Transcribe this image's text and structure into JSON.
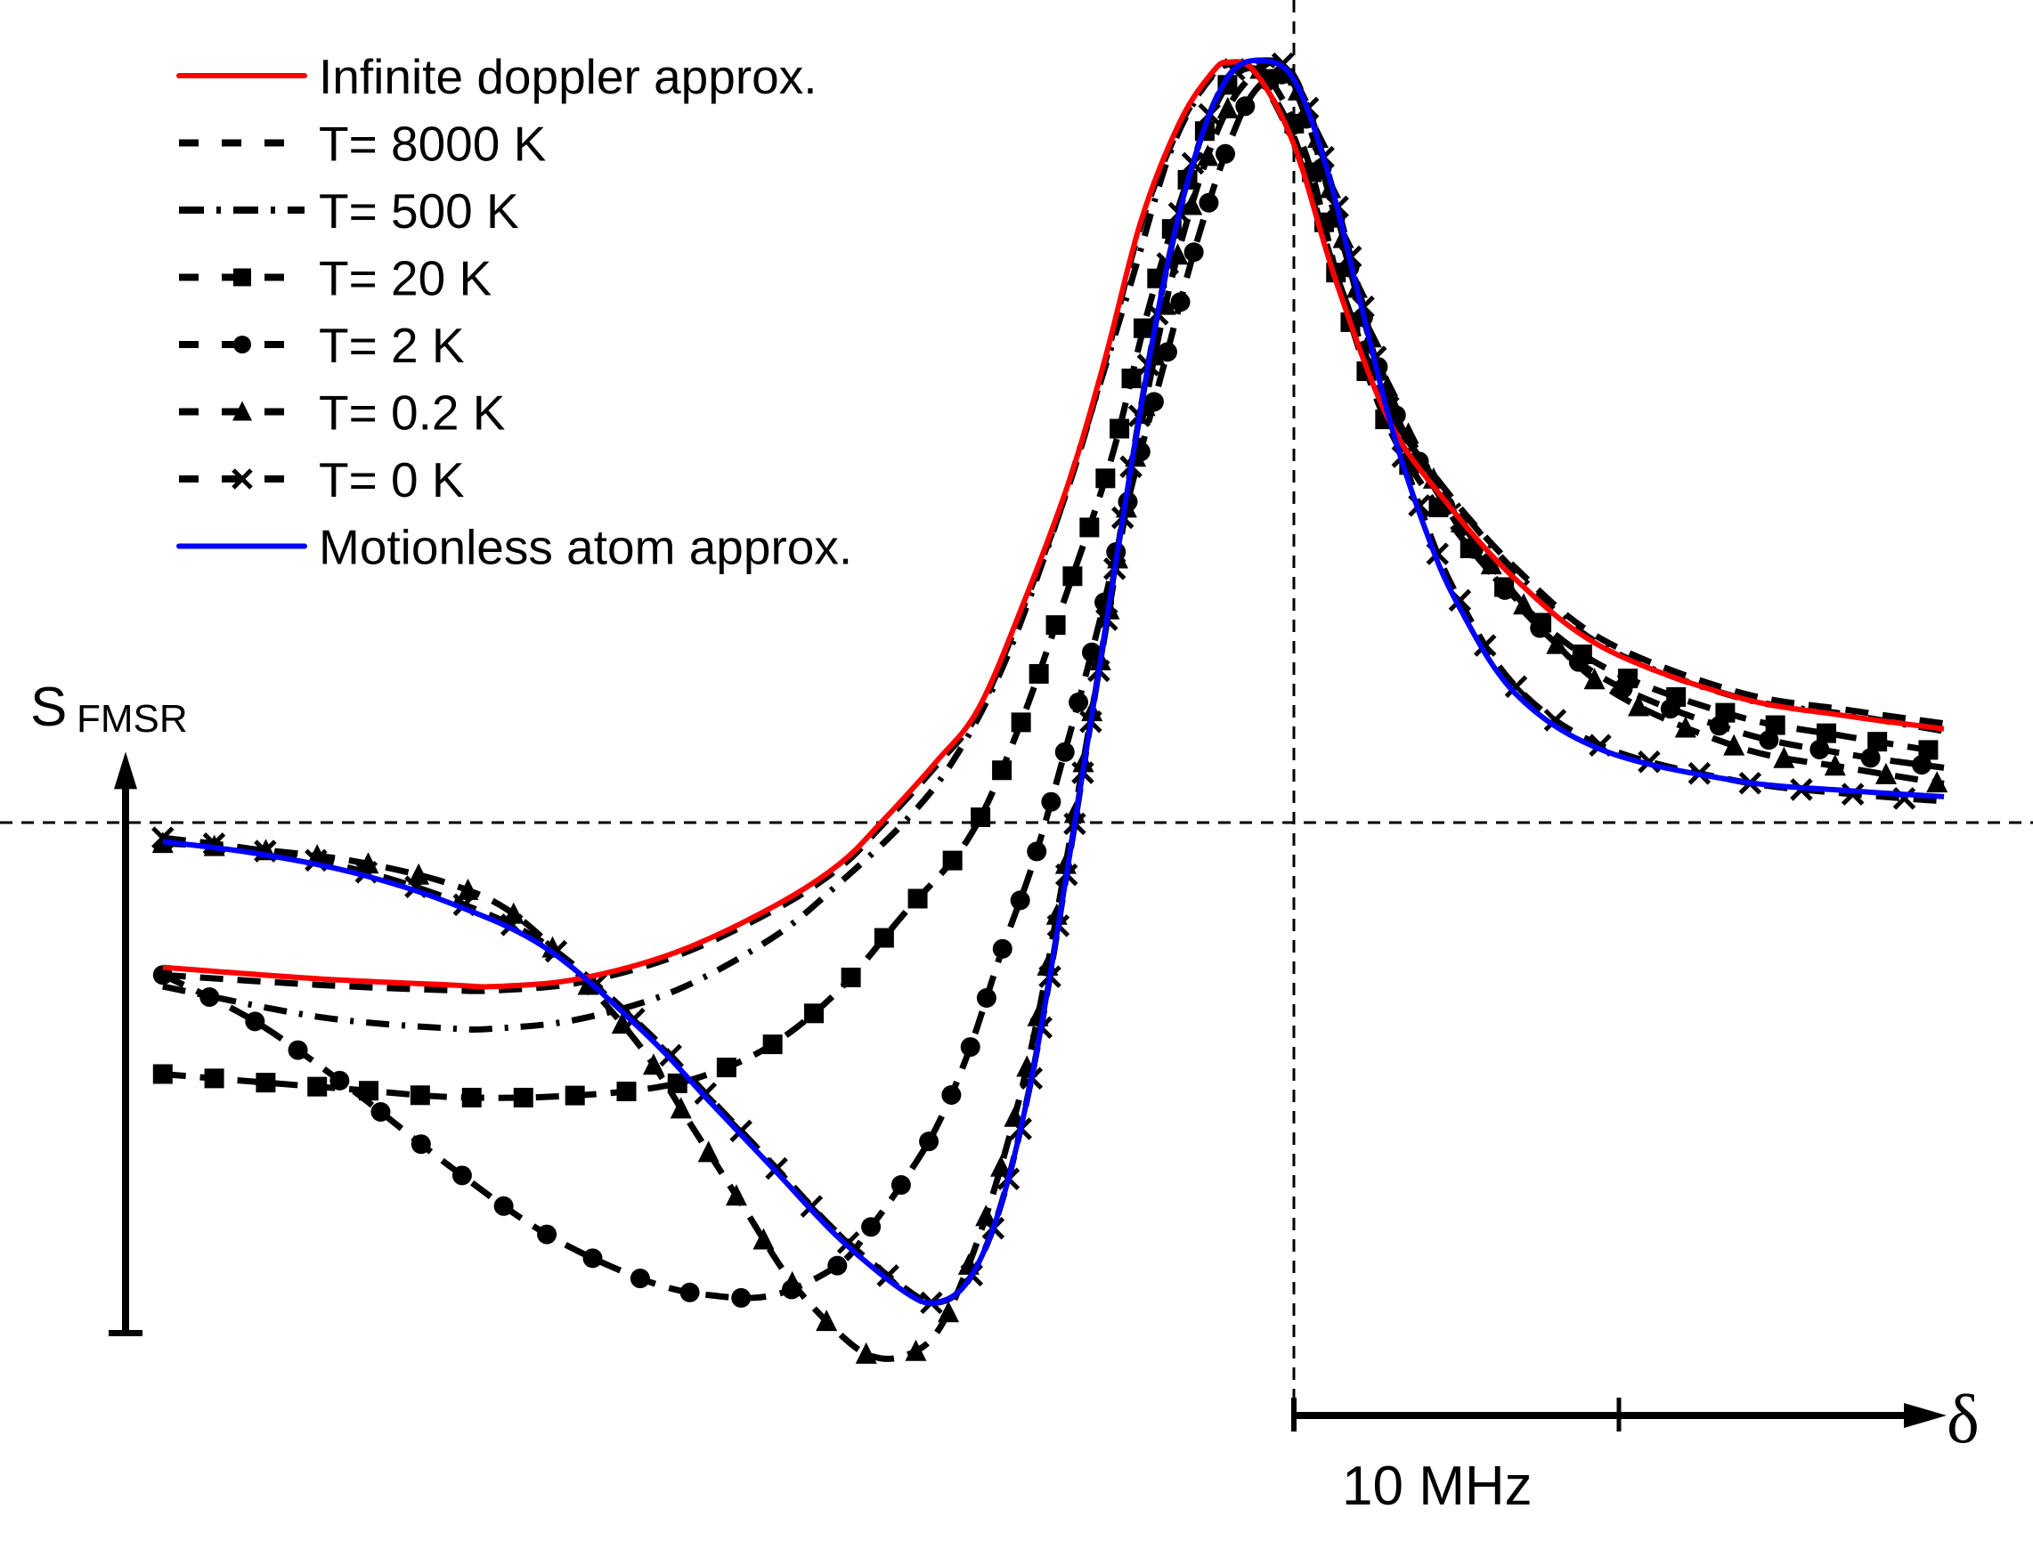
{
  "chart_data": {
    "type": "line",
    "title": "",
    "ylabel": "S",
    "ylabel_subscript": "FMSR",
    "xlabel": "δ",
    "x_unit": "MHz",
    "x_scale_bar_label": "10 MHz",
    "x_scale_bar_value": 10,
    "xlim": [
      -34.8,
      20
    ],
    "ylim": [
      -0.68,
      1.05
    ],
    "y_axis_arrow_range": [
      -0.67,
      0.093
    ],
    "x_axis_arrow_range": [
      0,
      20
    ],
    "reference_lines": {
      "horizontal_y": 0,
      "vertical_x": 0
    },
    "grid": false,
    "legend_position": "top-left",
    "series": [
      {
        "name": "Infinite doppler approx.",
        "color": "#ff0000",
        "style": "solid",
        "marker": "none",
        "x": [
          -34.8,
          -30,
          -26,
          -24.5,
          -22,
          -19,
          -16,
          -14,
          -12.7,
          -11,
          -9.7,
          -8.3,
          -6.9,
          -5.8,
          -4.7,
          -3.5,
          -2.5,
          -2,
          -1.2,
          0,
          1.3,
          2.9,
          4.6,
          6.8,
          9.5,
          13.6,
          17,
          20
        ],
        "y": [
          -0.19,
          -0.205,
          -0.213,
          -0.215,
          -0.205,
          -0.17,
          -0.11,
          -0.055,
          0,
          0.08,
          0.15,
          0.29,
          0.45,
          0.61,
          0.79,
          0.92,
          0.985,
          0.998,
          0.985,
          0.89,
          0.71,
          0.53,
          0.425,
          0.32,
          0.23,
          0.165,
          0.14,
          0.123
        ]
      },
      {
        "name": "T= 8000 K",
        "color": "#000000",
        "style": "dashed",
        "marker": "none",
        "x": [
          -34.8,
          -30,
          -26,
          -24.5,
          -22,
          -19,
          -16,
          -14,
          -12.7,
          -11,
          -9.7,
          -8.3,
          -6.9,
          -5.8,
          -4.7,
          -3.5,
          -2.5,
          -2,
          -1.2,
          0,
          1.3,
          2.9,
          4.6,
          6.8,
          9.5,
          13.6,
          17,
          20
        ],
        "y": [
          -0.2,
          -0.213,
          -0.22,
          -0.22,
          -0.21,
          -0.175,
          -0.115,
          -0.06,
          -0.005,
          0.075,
          0.145,
          0.285,
          0.445,
          0.605,
          0.785,
          0.915,
          0.98,
          0.995,
          0.985,
          0.9,
          0.72,
          0.545,
          0.44,
          0.335,
          0.24,
          0.172,
          0.148,
          0.13
        ]
      },
      {
        "name": "T= 500 K",
        "color": "#000000",
        "style": "dash-dot",
        "marker": "none",
        "x": [
          -34.8,
          -30,
          -26,
          -24.5,
          -22,
          -19,
          -16,
          -14,
          -12,
          -10.5,
          -9,
          -7.5,
          -6.3,
          -5,
          -3.8,
          -2.7,
          -2,
          -1.2,
          0,
          1.3,
          2.9,
          4.6,
          6.8,
          9.5,
          13.6,
          17,
          20
        ],
        "y": [
          -0.215,
          -0.255,
          -0.27,
          -0.27,
          -0.258,
          -0.22,
          -0.15,
          -0.08,
          0.0,
          0.08,
          0.2,
          0.37,
          0.53,
          0.71,
          0.88,
          0.97,
          0.995,
          0.985,
          0.89,
          0.72,
          0.545,
          0.44,
          0.33,
          0.232,
          0.165,
          0.142,
          0.12
        ]
      },
      {
        "name": "T= 20 K",
        "color": "#000000",
        "style": "dashed",
        "marker": "square",
        "x": [
          -34.8,
          -32,
          -29,
          -26,
          -23,
          -20,
          -18,
          -16,
          -14,
          -12,
          -10,
          -8.5,
          -7,
          -5.6,
          -4.5,
          -3.3,
          -2.3,
          -1.4,
          -0.5,
          0.5,
          1.5,
          2.9,
          4.6,
          6.8,
          9.5,
          13.6,
          17,
          20
        ],
        "y": [
          -0.33,
          -0.34,
          -0.35,
          -0.36,
          -0.36,
          -0.35,
          -0.33,
          -0.29,
          -0.22,
          -0.12,
          -0.02,
          0.12,
          0.3,
          0.48,
          0.67,
          0.84,
          0.95,
          0.99,
          0.96,
          0.86,
          0.69,
          0.52,
          0.405,
          0.295,
          0.205,
          0.14,
          0.113,
          0.092
        ]
      },
      {
        "name": "T= 2 K",
        "color": "#000000",
        "style": "dashed",
        "marker": "circle",
        "x": [
          -34.8,
          -32,
          -29,
          -26,
          -23,
          -20,
          -18,
          -16,
          -14,
          -13,
          -12,
          -11,
          -10,
          -9,
          -8,
          -7,
          -6,
          -5,
          -4,
          -3,
          -2,
          -1.2,
          -0.3,
          0.5,
          1.5,
          2.9,
          4.6,
          6.8,
          9.5,
          13.6,
          17,
          20
        ],
        "y": [
          -0.2,
          -0.26,
          -0.35,
          -0.45,
          -0.54,
          -0.6,
          -0.62,
          -0.62,
          -0.58,
          -0.53,
          -0.47,
          -0.4,
          -0.3,
          -0.17,
          -0.05,
          0.1,
          0.26,
          0.44,
          0.6,
          0.76,
          0.89,
          0.96,
          0.98,
          0.91,
          0.76,
          0.56,
          0.42,
          0.29,
          0.19,
          0.12,
          0.09,
          0.072
        ]
      },
      {
        "name": "T= 0.2 K",
        "color": "#000000",
        "style": "dashed",
        "marker": "triangle",
        "x": [
          -34.8,
          -32,
          -29,
          -26,
          -24,
          -22,
          -20,
          -18.5,
          -17,
          -15.5,
          -14,
          -13,
          -12,
          -11,
          -10,
          -9,
          -8,
          -7,
          -6,
          -5,
          -4,
          -3,
          -2,
          -1,
          -0.5,
          0.5,
          1.5,
          2.9,
          4.6,
          6.8,
          9.5,
          13.6,
          17,
          20
        ],
        "y": [
          -0.027,
          -0.035,
          -0.05,
          -0.08,
          -0.12,
          -0.2,
          -0.3,
          -0.4,
          -0.5,
          -0.6,
          -0.67,
          -0.7,
          -0.7,
          -0.67,
          -0.58,
          -0.45,
          -0.28,
          -0.05,
          0.2,
          0.45,
          0.67,
          0.83,
          0.94,
          0.99,
          0.99,
          0.93,
          0.77,
          0.57,
          0.43,
          0.3,
          0.18,
          0.1,
          0.072,
          0.051
        ]
      },
      {
        "name": "T= 0 K",
        "color": "#000000",
        "style": "dashed",
        "marker": "x",
        "x": [
          -34.8,
          -32,
          -29,
          -26,
          -23,
          -20,
          -18,
          -16,
          -14,
          -12,
          -11,
          -10,
          -9,
          -8,
          -7,
          -6,
          -5,
          -4,
          -3,
          -2,
          -1,
          0,
          1,
          2,
          3,
          4,
          5,
          6.8,
          9.5,
          13.6,
          17,
          20
        ],
        "y": [
          -0.02,
          -0.035,
          -0.06,
          -0.1,
          -0.16,
          -0.27,
          -0.36,
          -0.45,
          -0.54,
          -0.61,
          -0.63,
          -0.6,
          -0.5,
          -0.32,
          -0.07,
          0.2,
          0.47,
          0.71,
          0.88,
          0.98,
          1.0,
          0.98,
          0.86,
          0.7,
          0.53,
          0.4,
          0.3,
          0.18,
          0.1,
          0.055,
          0.038,
          0.028
        ]
      },
      {
        "name": "Motionless atom approx.",
        "color": "#0000ff",
        "style": "solid",
        "marker": "none",
        "x": [
          -34.8,
          -32,
          -29,
          -26,
          -23,
          -20,
          -18,
          -16,
          -14,
          -12,
          -11,
          -10,
          -9,
          -8,
          -7,
          -6,
          -5,
          -4,
          -3,
          -2,
          -1,
          0,
          1,
          2,
          3,
          4,
          5,
          6.8,
          9.5,
          13.6,
          17,
          20
        ],
        "y": [
          -0.025,
          -0.04,
          -0.065,
          -0.105,
          -0.165,
          -0.275,
          -0.365,
          -0.455,
          -0.545,
          -0.615,
          -0.63,
          -0.6,
          -0.5,
          -0.32,
          -0.07,
          0.2,
          0.47,
          0.71,
          0.88,
          0.98,
          1.0,
          0.975,
          0.86,
          0.69,
          0.52,
          0.39,
          0.29,
          0.17,
          0.095,
          0.055,
          0.042,
          0.034
        ]
      }
    ]
  }
}
